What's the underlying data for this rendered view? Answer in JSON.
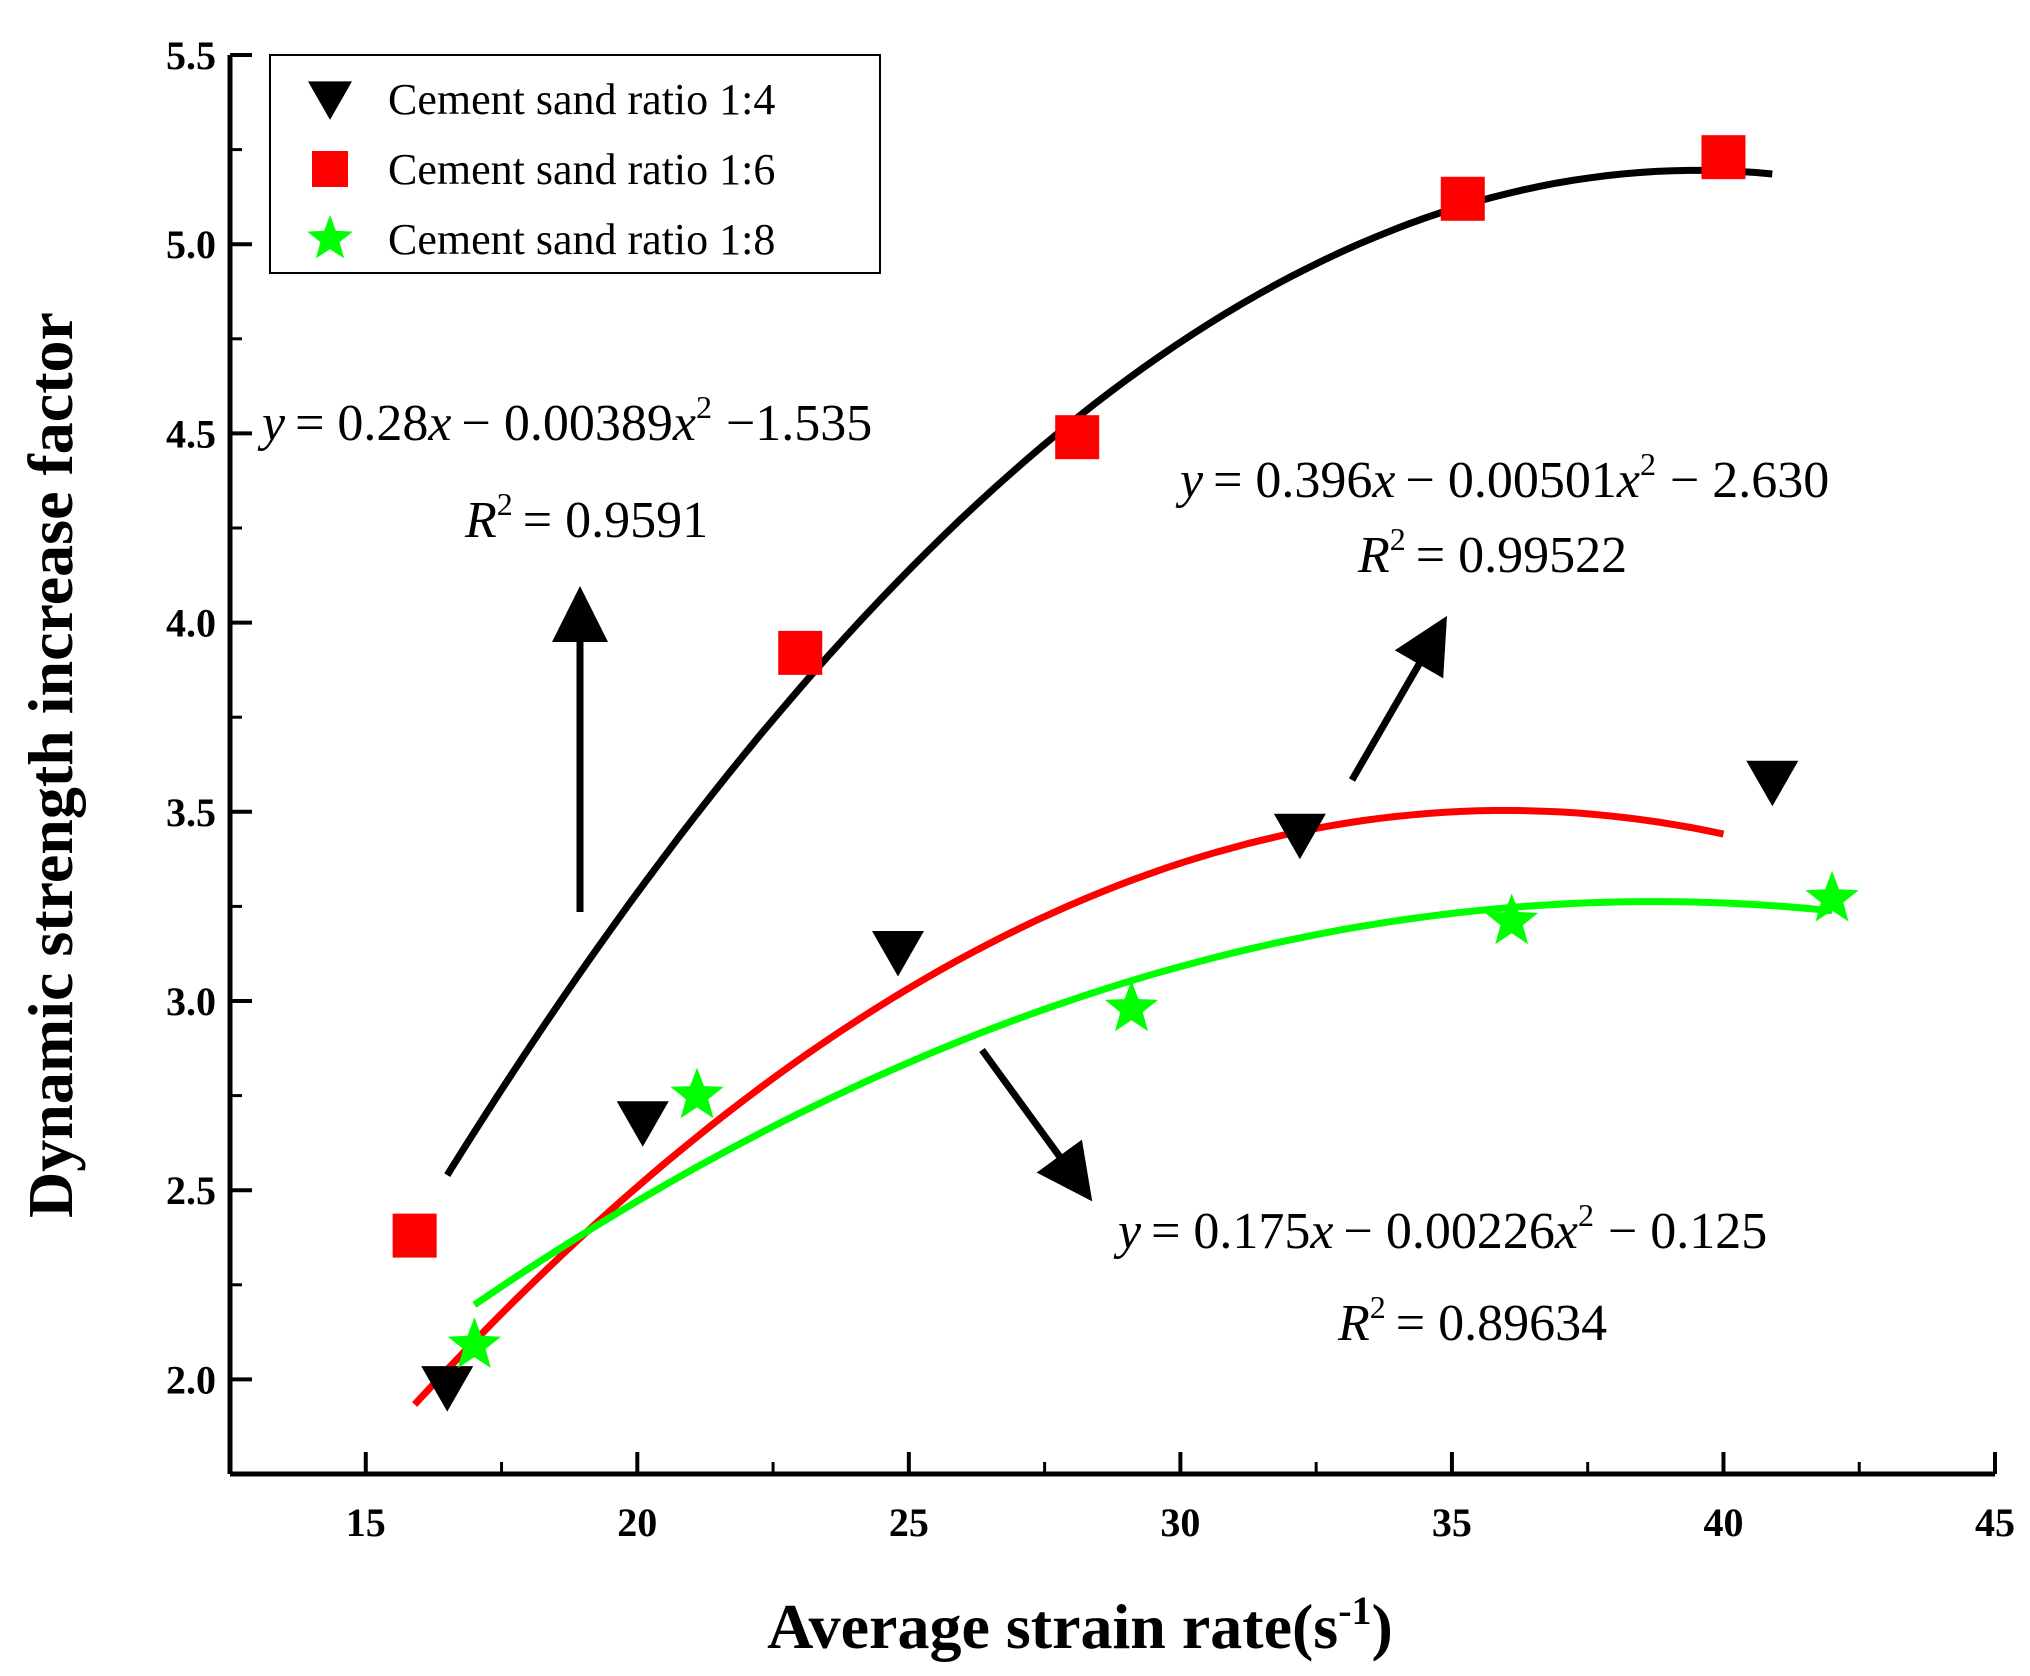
{
  "chart_data": {
    "type": "scatter",
    "title": "",
    "xlabel": "Average strain rate(s",
    "xlabel_superscript": "-1",
    "xlabel_close": ")",
    "ylabel": "Dynamic strength increase factor",
    "xlim": [
      12.5,
      45
    ],
    "ylim": [
      1.75,
      5.5
    ],
    "xticks": [
      15,
      20,
      25,
      30,
      35,
      40,
      45
    ],
    "yticks": [
      2.0,
      2.5,
      3.0,
      3.5,
      4.0,
      4.5,
      5.0,
      5.5
    ],
    "xtick_labels": [
      "15",
      "20",
      "25",
      "30",
      "35",
      "40",
      "45"
    ],
    "ytick_labels": [
      "2.0",
      "2.5",
      "3.0",
      "3.5",
      "4.0",
      "4.5",
      "5.0",
      "5.5"
    ],
    "legend_position": "top-left",
    "series": [
      {
        "name": "Cement sand ratio 1:4",
        "color": "#000000",
        "marker": "triangle-down",
        "x": [
          16.5,
          20.1,
          24.8,
          32.2,
          40.9
        ],
        "y": [
          1.98,
          2.68,
          3.13,
          3.44,
          3.58
        ],
        "fit": {
          "a": 0.396,
          "b": -0.00501,
          "c": -2.63,
          "x_range": [
            16.5,
            40.9
          ]
        }
      },
      {
        "name": "Cement sand ratio 1:6",
        "color": "#ff0000",
        "marker": "square",
        "x": [
          15.9,
          23.0,
          28.1,
          35.2,
          40.0
        ],
        "y": [
          2.38,
          3.92,
          4.49,
          5.12,
          5.23
        ],
        "fit": {
          "a": 0.28,
          "b": -0.00389,
          "c": -1.535,
          "x_range": [
            15.9,
            40.0
          ]
        }
      },
      {
        "name": "Cement sand ratio 1:8",
        "color": "#00ff00",
        "marker": "star",
        "x": [
          17.0,
          21.1,
          29.1,
          36.1,
          42.0
        ],
        "y": [
          2.09,
          2.75,
          2.98,
          3.21,
          3.27
        ],
        "fit": {
          "a": 0.175,
          "b": -0.00226,
          "c": -0.125,
          "x_range": [
            17.0,
            42.0
          ]
        }
      }
    ],
    "annotations": [
      {
        "id": "eq-16",
        "y_lead": "y",
        "eq_main": "= 0.28",
        "x_var": "x",
        "eq_mid": "− 0.00389",
        "x_var2": "x",
        "sup": "2",
        "eq_tail": "−1.535",
        "r_lead": "R",
        "r_sup": "2",
        "r_val": "= 0.9591"
      },
      {
        "id": "eq-14",
        "y_lead": "y",
        "eq_main": "= 0.396",
        "x_var": "x",
        "eq_mid": "− 0.00501",
        "x_var2": "x",
        "sup": "2",
        "eq_tail": "− 2.630",
        "r_lead": "R",
        "r_sup": "2",
        "r_val": "= 0.99522"
      },
      {
        "id": "eq-18",
        "y_lead": "y",
        "eq_main": "= 0.175",
        "x_var": "x",
        "eq_mid": "− 0.00226",
        "x_var2": "x",
        "sup": "2",
        "eq_tail": "− 0.125",
        "r_lead": "R",
        "r_sup": "2",
        "r_val": "= 0.89634"
      }
    ]
  }
}
